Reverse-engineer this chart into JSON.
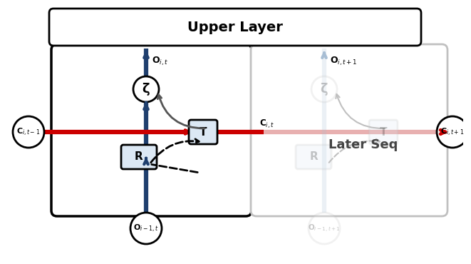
{
  "title": "Upper Layer",
  "later_seq_label": "Later Seq",
  "bg_color": "#ffffff",
  "blue_color": "#1f3f6e",
  "blue_light": "#a8bed4",
  "red_color": "#cc0000",
  "red_light": "#e8b0b0",
  "gray_color": "#555555",
  "gray_light": "#c0c0c0",
  "R_fill": "#dce8f4",
  "T_fill": "#dce8f4",
  "labels": {
    "C_it_minus1": "C$_{i,t-1}$",
    "C_it": "C$_{i,t}$",
    "C_it_plus1": "C$_{i,t+1}$",
    "O_it": "O$_{i,t}$",
    "O_it_plus1": "O$_{i,t+1}$",
    "O_i1t": "O$_{i-1,t}$",
    "O_i1t_plus1": "O$_{i-1,t+1}$",
    "zeta": "ζ",
    "T": "T",
    "R": "R"
  }
}
